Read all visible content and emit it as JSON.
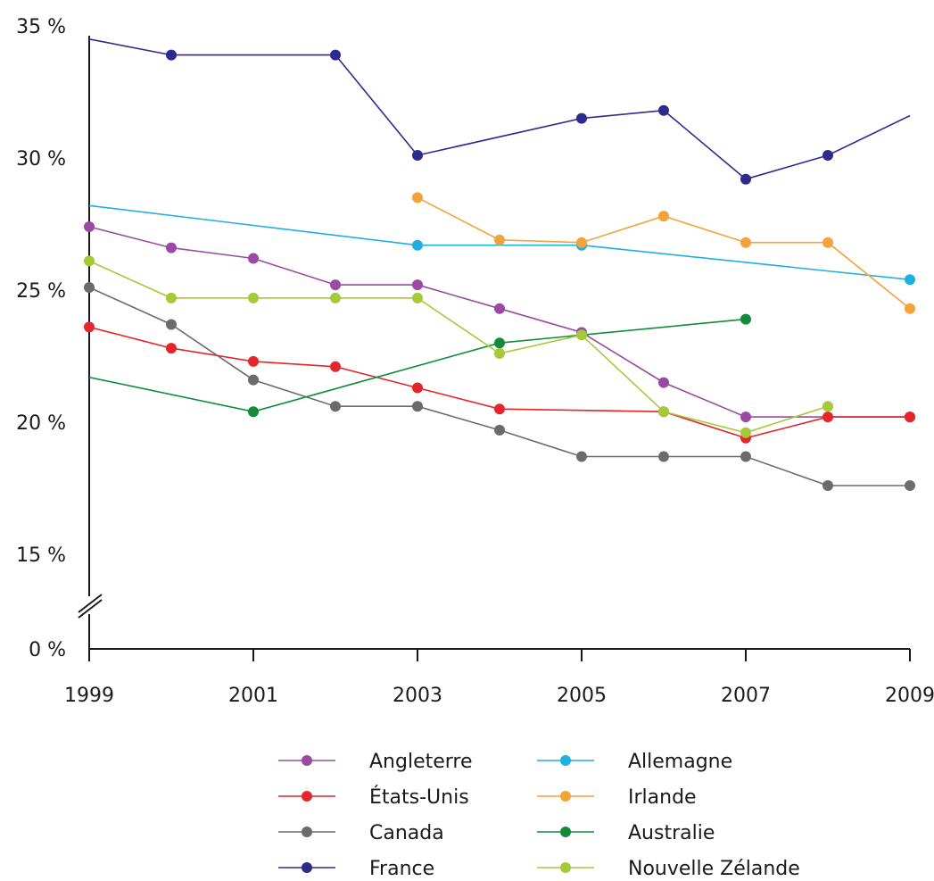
{
  "chart_data": {
    "type": "line",
    "title": "",
    "xlabel": "",
    "ylabel": "",
    "xlim": [
      1999,
      2009
    ],
    "x_ticks": [
      "1999",
      "2001",
      "2003",
      "2005",
      "2007",
      "2009"
    ],
    "y_ticks": [
      {
        "value": 0,
        "label": "0 %"
      },
      {
        "value": 15,
        "label": "15 %"
      },
      {
        "value": 20,
        "label": "20 %"
      },
      {
        "value": 25,
        "label": "25 %"
      },
      {
        "value": 30,
        "label": "30 %"
      },
      {
        "value": 35,
        "label": "35 %"
      }
    ],
    "y_axis_break": "between 0 % and 15 %",
    "grid": false,
    "legend_position": "bottom",
    "series": [
      {
        "name": "Angleterre",
        "color": "#9b4aa3",
        "points": [
          [
            1999,
            27.4
          ],
          [
            2000,
            26.6
          ],
          [
            2001,
            26.2
          ],
          [
            2002,
            25.2
          ],
          [
            2003,
            25.2
          ],
          [
            2004,
            24.3
          ],
          [
            2005,
            23.4
          ],
          [
            2006,
            21.5
          ],
          [
            2007,
            20.2
          ],
          [
            2009,
            20.2
          ]
        ]
      },
      {
        "name": "États-Unis",
        "color": "#e3262b",
        "points": [
          [
            1999,
            23.6
          ],
          [
            2000,
            22.8
          ],
          [
            2001,
            22.3
          ],
          [
            2002,
            22.1
          ],
          [
            2003,
            21.3
          ],
          [
            2004,
            20.5
          ],
          [
            2006,
            20.4
          ],
          [
            2007,
            19.4
          ],
          [
            2008,
            20.2
          ],
          [
            2009,
            20.2
          ]
        ]
      },
      {
        "name": "Canada",
        "color": "#6b6b6b",
        "points": [
          [
            1999,
            25.1
          ],
          [
            2000,
            23.7
          ],
          [
            2001,
            21.6
          ],
          [
            2002,
            20.6
          ],
          [
            2003,
            20.6
          ],
          [
            2004,
            19.7
          ],
          [
            2005,
            18.7
          ],
          [
            2006,
            18.7
          ],
          [
            2007,
            18.7
          ],
          [
            2008,
            17.6
          ],
          [
            2009,
            17.6
          ]
        ]
      },
      {
        "name": "France",
        "color": "#2e2a8c",
        "points": [
          [
            1999,
            34.5
          ],
          [
            2000,
            33.9
          ],
          [
            2002,
            33.9
          ],
          [
            2003,
            30.1
          ],
          [
            2005,
            31.5
          ],
          [
            2006,
            31.8
          ],
          [
            2007,
            29.2
          ],
          [
            2008,
            30.1
          ],
          [
            2009,
            31.6
          ]
        ]
      },
      {
        "name": "Allemagne",
        "color": "#20aee3",
        "points": [
          [
            1999,
            28.2
          ],
          [
            2003,
            26.7
          ],
          [
            2005,
            26.7
          ],
          [
            2009,
            25.4
          ]
        ]
      },
      {
        "name": "Irlande",
        "color": "#f4a23a",
        "points": [
          [
            2003,
            28.5
          ],
          [
            2004,
            26.9
          ],
          [
            2005,
            26.8
          ],
          [
            2006,
            27.8
          ],
          [
            2007,
            26.8
          ],
          [
            2008,
            26.8
          ],
          [
            2009,
            24.3
          ]
        ]
      },
      {
        "name": "Australie",
        "color": "#138a3e",
        "points": [
          [
            1999,
            21.7
          ],
          [
            2001,
            20.4
          ],
          [
            2004,
            23.0
          ],
          [
            2007,
            23.9
          ]
        ]
      },
      {
        "name": "Nouvelle Zélande",
        "color": "#a6c93a",
        "points": [
          [
            1999,
            26.1
          ],
          [
            2000,
            24.7
          ],
          [
            2001,
            24.7
          ],
          [
            2002,
            24.7
          ],
          [
            2003,
            24.7
          ],
          [
            2004,
            22.6
          ],
          [
            2005,
            23.3
          ],
          [
            2006,
            20.4
          ],
          [
            2007,
            19.6
          ],
          [
            2008,
            20.6
          ]
        ]
      }
    ]
  }
}
